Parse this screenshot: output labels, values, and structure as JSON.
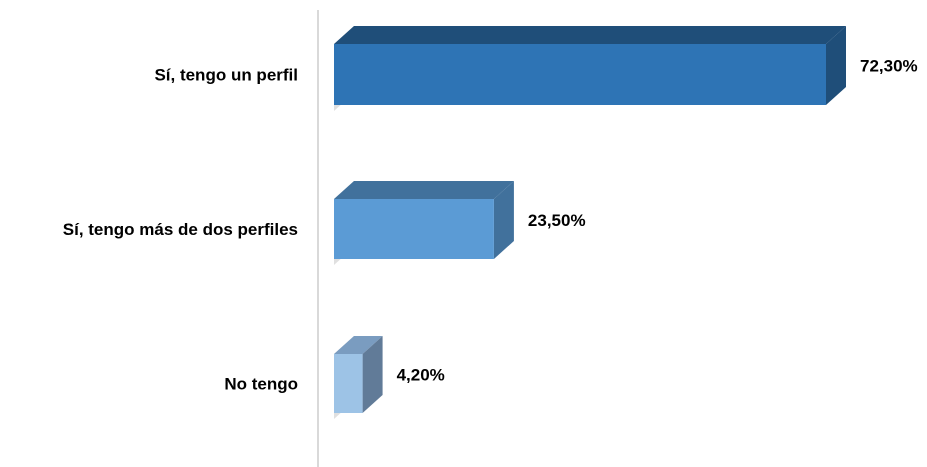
{
  "chart_data": {
    "type": "bar",
    "orientation": "horizontal",
    "categories": [
      "Sí, tengo un perfil",
      "Sí, tengo más de dos perfiles",
      "No tengo"
    ],
    "values": [
      72.3,
      23.5,
      4.2
    ],
    "value_labels": [
      "72,30%",
      "23,50%",
      "4,20%"
    ],
    "xlim": [
      0,
      74
    ],
    "colors": {
      "front": [
        "#2E74B5",
        "#5B9BD5",
        "#9DC3E6"
      ],
      "top": [
        "#1F4E79",
        "#41719C",
        "#7A9CC0"
      ],
      "side": [
        "#1F4E79",
        "#41719C",
        "#617B98"
      ]
    },
    "grid": false,
    "legend": "none"
  }
}
